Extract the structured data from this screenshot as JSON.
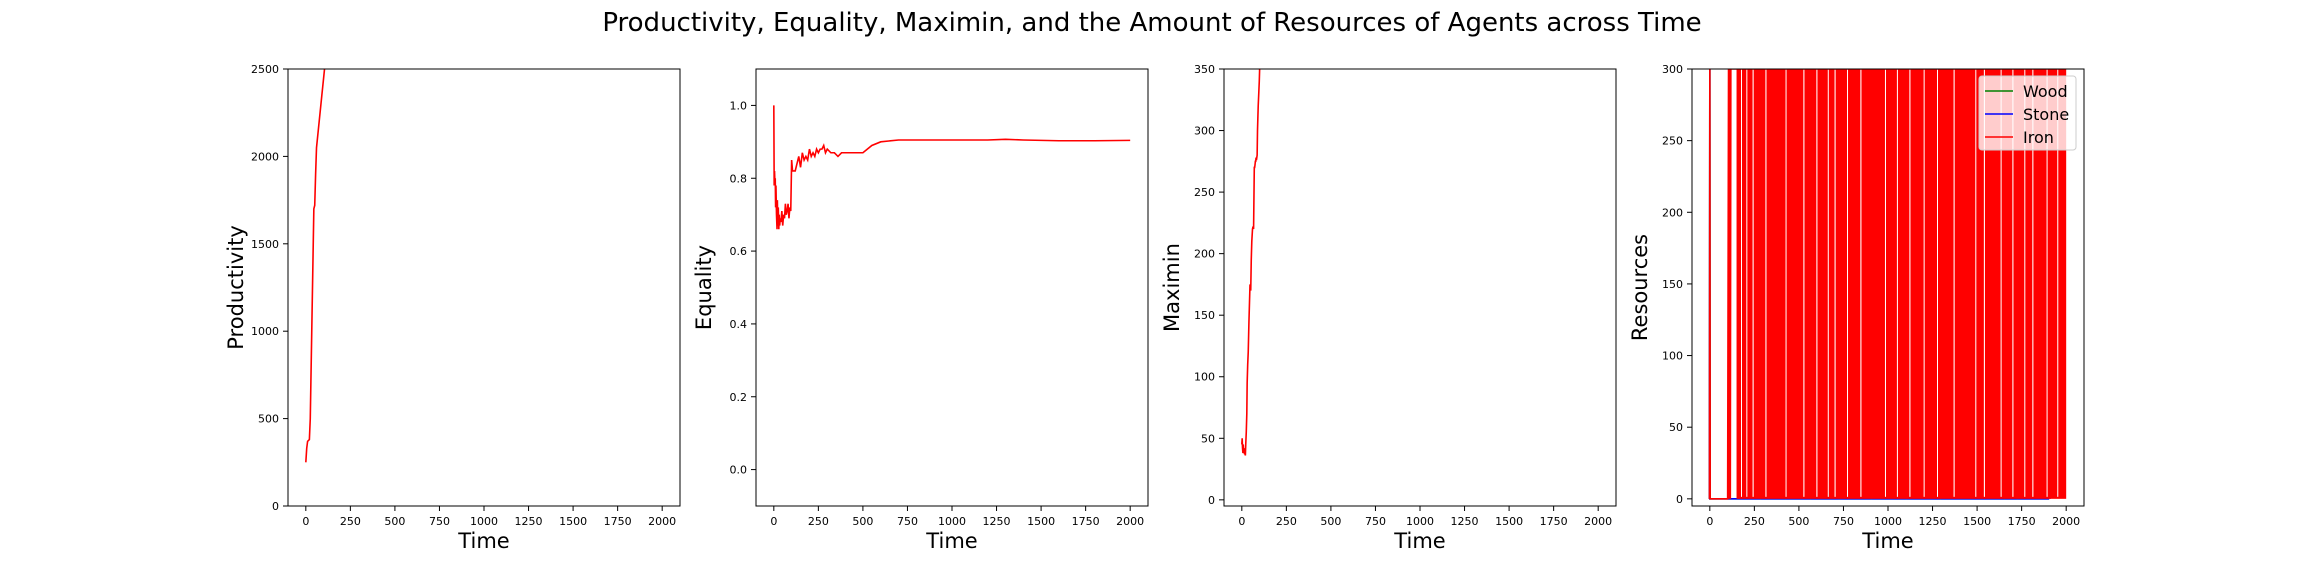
{
  "figure": {
    "title": "Productivity, Equality, Maximin, and the Amount of Resources of Agents across Time"
  },
  "chart_data": [
    {
      "type": "line",
      "ylabel": "Productivity",
      "xlabel": "Time",
      "xlim": [
        -100,
        2100
      ],
      "ylim": [
        0,
        2500
      ],
      "xticks": [
        0,
        250,
        500,
        750,
        1000,
        1250,
        1500,
        1750,
        2000
      ],
      "yticks": [
        0,
        500,
        1000,
        1500,
        2000,
        2500
      ],
      "grid": false,
      "series": [
        {
          "color": "#ff0000",
          "x": [
            0,
            5,
            10,
            20,
            25,
            30,
            35,
            40,
            45,
            50,
            55,
            60,
            65,
            70,
            75,
            80,
            85,
            90,
            95,
            100,
            105
          ],
          "y": [
            250,
            330,
            370,
            380,
            500,
            800,
            1100,
            1400,
            1700,
            1720,
            1900,
            2050,
            2100,
            2150,
            2200,
            2250,
            2300,
            2350,
            2400,
            2450,
            2500
          ]
        }
      ]
    },
    {
      "type": "line",
      "ylabel": "Equality",
      "xlabel": "Time",
      "xlim": [
        -100,
        2100
      ],
      "ylim": [
        -0.1,
        1.1
      ],
      "xticks": [
        0,
        250,
        500,
        750,
        1000,
        1250,
        1500,
        1750,
        2000
      ],
      "yticks": [
        0.0,
        0.2,
        0.4,
        0.6,
        0.8,
        1.0
      ],
      "ytick_labels": [
        "0.0",
        "0.2",
        "0.4",
        "0.6",
        "0.8",
        "1.0"
      ],
      "grid": false,
      "series": [
        {
          "color": "#ff0000",
          "x": [
            0,
            2,
            4,
            6,
            8,
            10,
            12,
            15,
            18,
            20,
            22,
            25,
            28,
            30,
            33,
            36,
            40,
            45,
            50,
            55,
            60,
            65,
            70,
            75,
            80,
            85,
            90,
            95,
            100,
            105,
            110,
            120,
            130,
            140,
            150,
            160,
            170,
            180,
            190,
            200,
            210,
            220,
            230,
            240,
            250,
            260,
            270,
            280,
            290,
            300,
            320,
            340,
            360,
            380,
            400,
            420,
            450,
            500,
            550,
            600,
            700,
            800,
            1000,
            1200,
            1300,
            1400,
            1600,
            1800,
            2000
          ],
          "y": [
            1.0,
            0.78,
            0.82,
            0.79,
            0.8,
            0.72,
            0.78,
            0.7,
            0.66,
            0.74,
            0.67,
            0.72,
            0.66,
            0.7,
            0.67,
            0.69,
            0.68,
            0.71,
            0.67,
            0.7,
            0.69,
            0.73,
            0.7,
            0.71,
            0.73,
            0.69,
            0.72,
            0.71,
            0.85,
            0.82,
            0.82,
            0.82,
            0.84,
            0.86,
            0.83,
            0.87,
            0.85,
            0.86,
            0.85,
            0.88,
            0.86,
            0.87,
            0.86,
            0.88,
            0.87,
            0.88,
            0.88,
            0.89,
            0.87,
            0.88,
            0.87,
            0.87,
            0.86,
            0.87,
            0.87,
            0.87,
            0.87,
            0.87,
            0.89,
            0.9,
            0.905,
            0.905,
            0.905,
            0.905,
            0.907,
            0.905,
            0.903,
            0.903,
            0.904
          ]
        }
      ]
    },
    {
      "type": "line",
      "ylabel": "Maximin",
      "xlabel": "Time",
      "xlim": [
        -100,
        2100
      ],
      "ylim": [
        -5,
        350
      ],
      "xticks": [
        0,
        250,
        500,
        750,
        1000,
        1250,
        1500,
        1750,
        2000
      ],
      "yticks": [
        0,
        50,
        100,
        150,
        200,
        250,
        300,
        350
      ],
      "grid": false,
      "series": [
        {
          "color": "#ff0000",
          "x": [
            0,
            2,
            4,
            6,
            8,
            10,
            12,
            14,
            16,
            18,
            20,
            22,
            25,
            28,
            30,
            33,
            36,
            40,
            43,
            46,
            50,
            53,
            56,
            60,
            63,
            66,
            70,
            72,
            74,
            76,
            78,
            80,
            82,
            84,
            86,
            88,
            90,
            92,
            95,
            98,
            100
          ],
          "y": [
            45,
            50,
            42,
            38,
            45,
            40,
            42,
            38,
            37,
            40,
            36,
            45,
            55,
            70,
            95,
            110,
            120,
            145,
            160,
            175,
            170,
            195,
            210,
            220,
            222,
            220,
            270,
            270,
            272,
            275,
            275,
            278,
            276,
            278,
            280,
            300,
            310,
            320,
            330,
            340,
            350
          ]
        }
      ]
    },
    {
      "type": "line",
      "ylabel": "Resources",
      "xlabel": "Time",
      "xlim": [
        -100,
        2100
      ],
      "ylim": [
        -5,
        300
      ],
      "xticks": [
        0,
        250,
        500,
        750,
        1000,
        1250,
        1500,
        1750,
        2000
      ],
      "yticks": [
        0,
        50,
        100,
        150,
        200,
        250,
        300
      ],
      "grid": false,
      "legend": "top-right",
      "series": [
        {
          "name": "Wood",
          "color": "#008000",
          "x": [
            -2,
            0,
            2,
            1900,
            1905
          ],
          "y": [
            0,
            300,
            0,
            0,
            300
          ]
        },
        {
          "name": "Stone",
          "color": "#0000ff",
          "x": [
            -2,
            0,
            0,
            2,
            280,
            285,
            290,
            420,
            425,
            430,
            560,
            565,
            570,
            720,
            725,
            730,
            900,
            905,
            910,
            1100,
            1105,
            1110,
            1290,
            1295,
            1300,
            1650,
            1655,
            1660,
            1720,
            1725,
            1730,
            1900,
            1905,
            1910
          ],
          "y": [
            0,
            300,
            0,
            0,
            0,
            300,
            0,
            0,
            300,
            0,
            0,
            300,
            0,
            0,
            300,
            0,
            0,
            300,
            0,
            0,
            300,
            0,
            0,
            300,
            0,
            0,
            300,
            0,
            0,
            300,
            0,
            0,
            300,
            0
          ]
        },
        {
          "name": "Iron",
          "color": "#ff0000",
          "x": [
            -2,
            0,
            2,
            100,
            105,
            108,
            112,
            115,
            118,
            2000
          ],
          "y": [
            0,
            300,
            0,
            0,
            300,
            0,
            300,
            0,
            300,
            300
          ],
          "fill": {
            "from": 150,
            "to": 2000,
            "value": 300
          },
          "gaps": [
            [
              112,
              118
            ],
            [
              175,
              179
            ],
            [
              205,
              209
            ],
            [
              240,
              246
            ],
            [
              312,
              318
            ],
            [
              425,
              429
            ],
            [
              525,
              531
            ],
            [
              598,
              604
            ],
            [
              662,
              666
            ],
            [
              700,
              706
            ],
            [
              770,
              774
            ],
            [
              845,
              851
            ],
            [
              983,
              987
            ],
            [
              1050,
              1054
            ],
            [
              1120,
              1126
            ],
            [
              1200,
              1204
            ],
            [
              1275,
              1279
            ],
            [
              1368,
              1374
            ],
            [
              1490,
              1494
            ],
            [
              1538,
              1544
            ],
            [
              1632,
              1636
            ],
            [
              1698,
              1704
            ],
            [
              1765,
              1769
            ],
            [
              1810,
              1816
            ],
            [
              1890,
              1894
            ],
            [
              1950,
              1954
            ]
          ]
        }
      ]
    }
  ]
}
